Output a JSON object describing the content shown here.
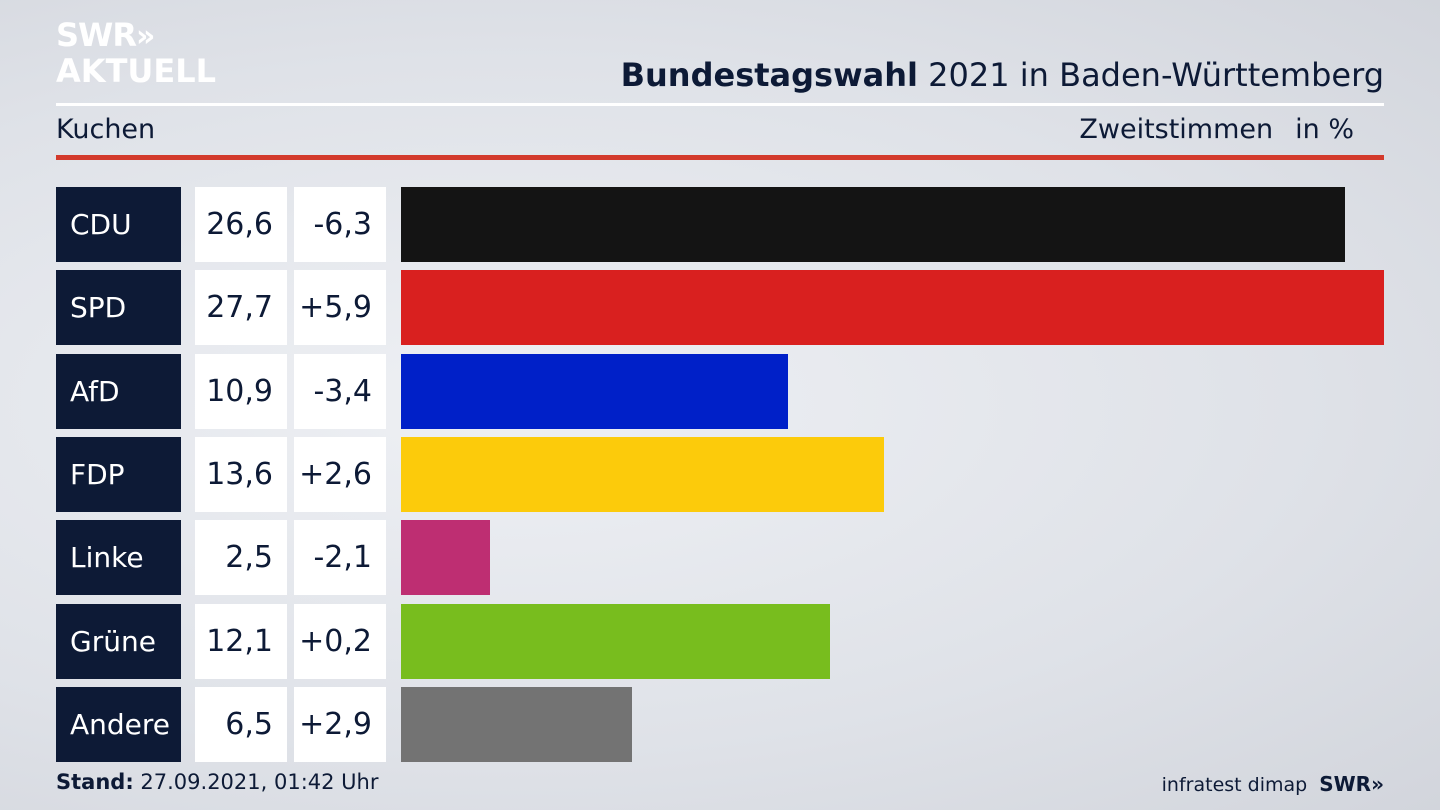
{
  "brand": {
    "logo_line1": "SWR",
    "logo_arrows": "»",
    "logo_line2": "AKTUELL"
  },
  "header": {
    "title_bold": "Bundestagswahl",
    "title_rest": " 2021 in Baden-Württemberg",
    "subtitle": "Kuchen",
    "measure": "Zweitstimmen",
    "unit": "in %"
  },
  "footer": {
    "stand_label": "Stand:",
    "stand_value": " 27.09.2021, 01:42 Uhr",
    "source": "infratest dimap",
    "broadcaster": "SWR»"
  },
  "chart_data": {
    "type": "bar",
    "orientation": "horizontal",
    "categories": [
      "CDU",
      "SPD",
      "AfD",
      "FDP",
      "Linke",
      "Grüne",
      "Andere"
    ],
    "values": [
      26.6,
      27.7,
      10.9,
      13.6,
      2.5,
      12.1,
      6.5
    ],
    "value_labels": [
      "26,6",
      "27,7",
      "10,9",
      "13,6",
      "2,5",
      "12,1",
      "6,5"
    ],
    "changes": [
      "-6,3",
      "+5,9",
      "-3,4",
      "+2,6",
      "-2,1",
      "+0,2",
      "+2,9"
    ],
    "colors": [
      "#141414",
      "#d9201f",
      "#0020c8",
      "#fccb0b",
      "#be2e72",
      "#78bd1e",
      "#737373"
    ],
    "xlim": [
      0,
      27.7
    ],
    "grid": false,
    "legend": "none"
  }
}
